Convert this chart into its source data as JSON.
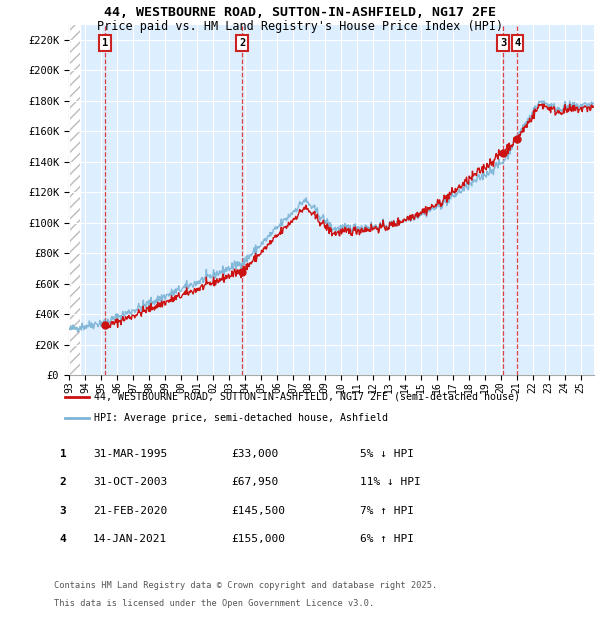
{
  "title1": "44, WESTBOURNE ROAD, SUTTON-IN-ASHFIELD, NG17 2FE",
  "title2": "Price paid vs. HM Land Registry's House Price Index (HPI)",
  "ylabel_values": [
    "£0",
    "£20K",
    "£40K",
    "£60K",
    "£80K",
    "£100K",
    "£120K",
    "£140K",
    "£160K",
    "£180K",
    "£200K",
    "£220K"
  ],
  "ylim": [
    0,
    230000
  ],
  "yticks": [
    0,
    20000,
    40000,
    60000,
    80000,
    100000,
    120000,
    140000,
    160000,
    180000,
    200000,
    220000
  ],
  "sale_years": [
    1995.25,
    2003.83,
    2020.14,
    2021.04
  ],
  "sale_prices": [
    33000,
    67950,
    145500,
    155000
  ],
  "sale_labels": [
    "1",
    "2",
    "3",
    "4"
  ],
  "vline_color": "#dd2222",
  "hpi_color": "#7eb5d6",
  "price_color": "#cc1111",
  "legend1": "44, WESTBOURNE ROAD, SUTTON-IN-ASHFIELD, NG17 2FE (semi-detached house)",
  "legend2": "HPI: Average price, semi-detached house, Ashfield",
  "table_rows": [
    [
      "1",
      "31-MAR-1995",
      "£33,000",
      "5% ↓ HPI"
    ],
    [
      "2",
      "31-OCT-2003",
      "£67,950",
      "11% ↓ HPI"
    ],
    [
      "3",
      "21-FEB-2020",
      "£145,500",
      "7% ↑ HPI"
    ],
    [
      "4",
      "14-JAN-2021",
      "£155,000",
      "6% ↑ HPI"
    ]
  ],
  "footnote1": "Contains HM Land Registry data © Crown copyright and database right 2025.",
  "footnote2": "This data is licensed under the Open Government Licence v3.0.",
  "plot_bg_color": "#ddeeff",
  "xlim_start": 1993.0,
  "xlim_end": 2025.83
}
